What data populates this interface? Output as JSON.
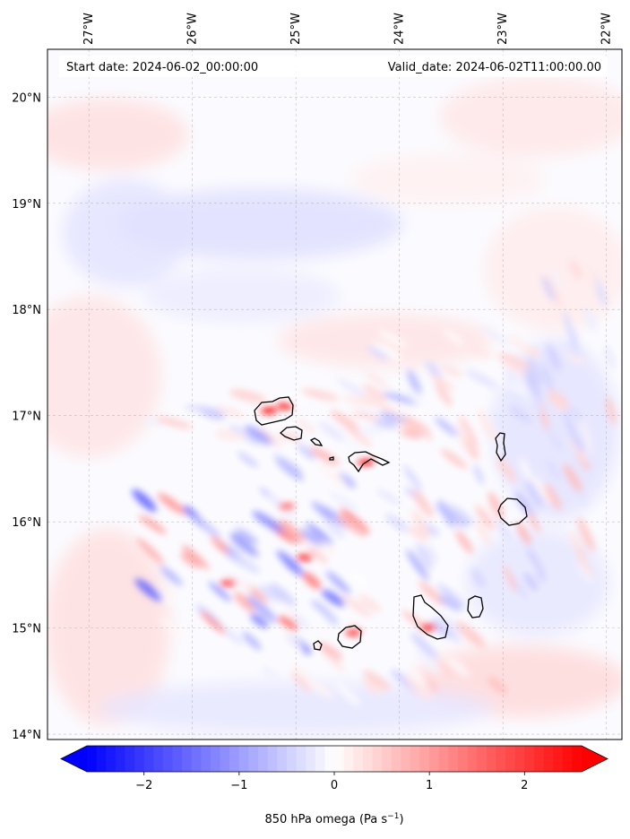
{
  "header": {
    "start_label": "Start date: 2024-06-02_00:00:00",
    "valid_label": "Valid_date: 2024-06-02T11:00:00.00"
  },
  "map": {
    "lon_range": [
      -27.4,
      -21.85
    ],
    "lat_range": [
      13.95,
      20.45
    ],
    "lon_ticks": [
      {
        "value": -27,
        "label": "27°W"
      },
      {
        "value": -26,
        "label": "26°W"
      },
      {
        "value": -25,
        "label": "25°W"
      },
      {
        "value": -24,
        "label": "24°W"
      },
      {
        "value": -23,
        "label": "23°W"
      },
      {
        "value": -22,
        "label": "22°W"
      }
    ],
    "lat_ticks": [
      {
        "value": 20,
        "label": "20°N"
      },
      {
        "value": 19,
        "label": "19°N"
      },
      {
        "value": 18,
        "label": "18°N"
      },
      {
        "value": 17,
        "label": "17°N"
      },
      {
        "value": 16,
        "label": "16°N"
      },
      {
        "value": 15,
        "label": "15°N"
      },
      {
        "value": 14,
        "label": "14°N"
      }
    ],
    "gridlines": true,
    "coastline_color": "#000000"
  },
  "colorbar": {
    "label_text": "850 hPa omega (Pa s",
    "label_sup": "−1",
    "label_close": ")",
    "range": [
      -2.6,
      2.6
    ],
    "ticks": [
      {
        "value": -2,
        "label": "−2"
      },
      {
        "value": -1,
        "label": "−1"
      },
      {
        "value": 0,
        "label": "0"
      },
      {
        "value": 1,
        "label": "1"
      },
      {
        "value": 2,
        "label": "2"
      }
    ],
    "colormap": "bwr",
    "low_color": "#0000ff",
    "mid_color": "#ffffff",
    "high_color": "#ff0000",
    "levels": 52,
    "extend": "both"
  }
}
